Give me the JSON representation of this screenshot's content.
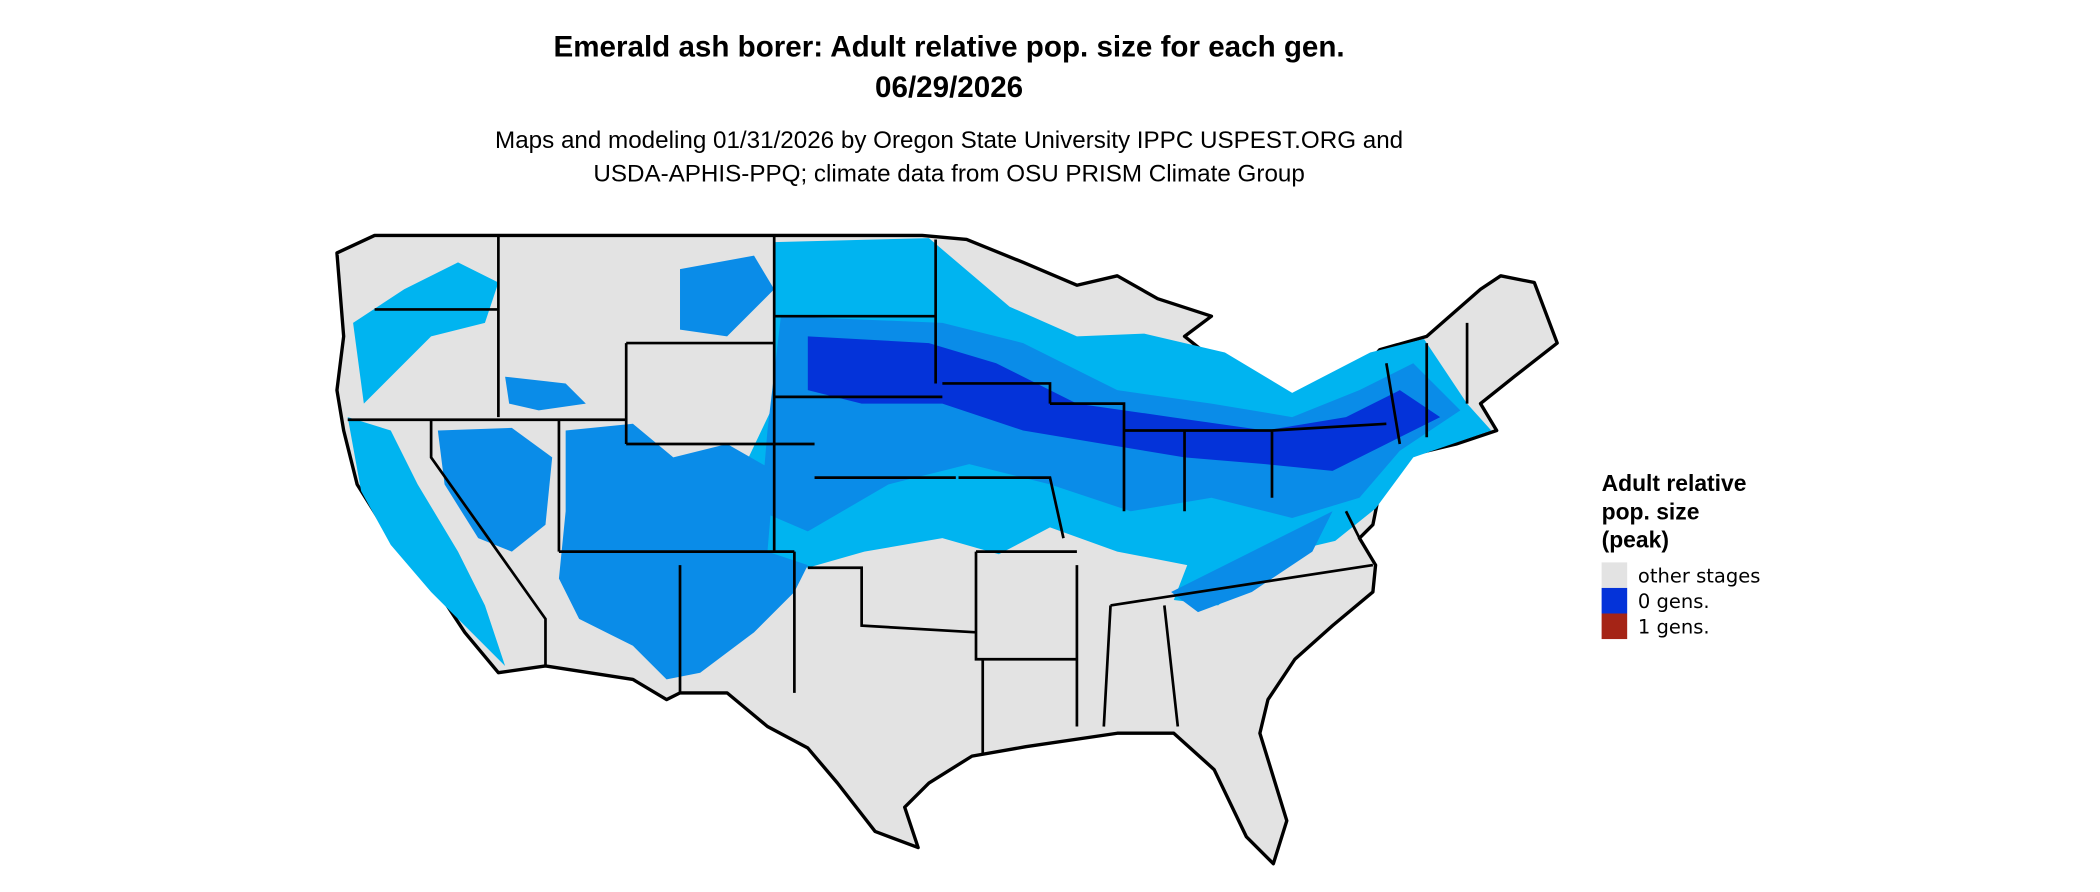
{
  "title": {
    "line1": "Emerald ash borer: Adult relative pop. size for each gen.",
    "line2": "06/29/2026"
  },
  "subtitle": {
    "line1": "Maps and modeling 01/31/2026 by Oregon State University IPPC USPEST.ORG and",
    "line2": "USDA-APHIS-PPQ; climate data from OSU PRISM Climate Group"
  },
  "legend": {
    "title_lines": [
      "Adult relative",
      "pop. size",
      "(peak)"
    ],
    "items": [
      {
        "label": "other stages",
        "color": "#e3e3e3"
      },
      {
        "label": "0 gens.",
        "color": "#0433d9"
      },
      {
        "label": "1 gens.",
        "color": "#a52416"
      }
    ]
  },
  "colors": {
    "land": "#e3e3e3",
    "light_blue": "#00b4f0",
    "mid_blue": "#0a8ce8",
    "dark_blue": "#0433d9",
    "border": "#000000"
  }
}
